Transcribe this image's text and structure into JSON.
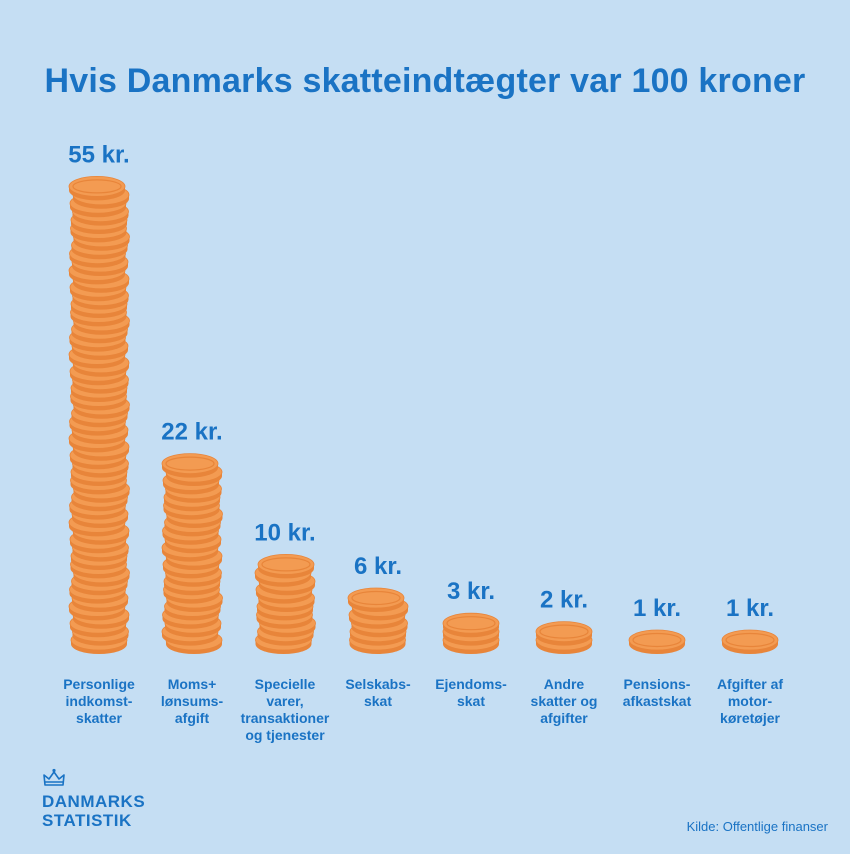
{
  "title": "Hvis Danmarks skatteindtægter var 100 kroner",
  "chart_data": {
    "type": "bar",
    "title": "Hvis Danmarks skatteindtægter var 100 kroner",
    "unit": "kr.",
    "categories": [
      [
        "Personlige",
        "indkomst-",
        "skatter"
      ],
      [
        "Moms+",
        "lønsums-",
        "afgift"
      ],
      [
        "Specielle",
        "varer,",
        "transaktioner",
        "og tjenester"
      ],
      [
        "Selskabs-",
        "skat"
      ],
      [
        "Ejendoms-",
        "skat"
      ],
      [
        "Andre",
        "skatter og",
        "afgifter"
      ],
      [
        "Pensions-",
        "afkastskat"
      ],
      [
        "Afgifter af",
        "motor-",
        "køretøjer"
      ]
    ],
    "values": [
      55,
      22,
      10,
      6,
      3,
      2,
      1,
      1
    ],
    "value_labels": [
      "55 kr.",
      "22 kr.",
      "10 kr.",
      "6 kr.",
      "3 kr.",
      "2 kr.",
      "1 kr.",
      "1 kr."
    ],
    "coin_color": "#f39b52",
    "coin_rim_color": "#e8853a",
    "text_color": "#1a73c4",
    "background": "#c5def3"
  },
  "logo": {
    "line1": "DANMARKS",
    "line2": "STATISTIK"
  },
  "source": "Kilde: Offentlige finanser"
}
